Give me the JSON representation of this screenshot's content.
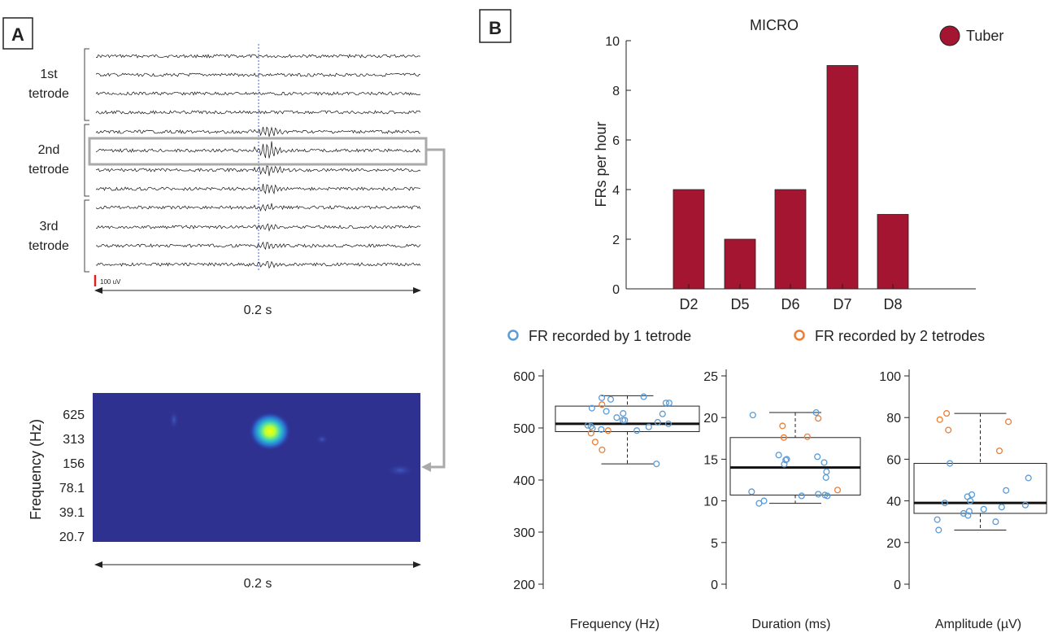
{
  "panels": {
    "a": {
      "label": "A",
      "groups": [
        {
          "line1": "1st",
          "line2": "tetrode"
        },
        {
          "line1": "2nd",
          "line2": "tetrode"
        },
        {
          "line1": "3rd",
          "line2": "tetrode"
        }
      ],
      "trace_count": 12,
      "highlighted_trace": 6,
      "scale_bar_label": "100 uV",
      "scale_bar_color": "#e0201b",
      "time_label": "0.2 s",
      "spectrogram": {
        "ylabel": "Frequency (Hz)",
        "ticks": [
          "625",
          "313",
          "156",
          "78.1",
          "39.1",
          "20.7"
        ],
        "time_label": "0.2 s",
        "background_color": "#2e3190"
      }
    },
    "b": {
      "label": "B",
      "legend": {
        "one_tetrode": "FR recorded by 1 tetrode",
        "two_tetrodes": "FR recorded by 2 tetrodes",
        "one_color": "#5b9bd5",
        "two_color": "#ed7d31"
      }
    }
  },
  "chart_data": [
    {
      "type": "bar",
      "title": "MICRO",
      "ylabel": "FRs per hour",
      "categories": [
        "D2",
        "D5",
        "D6",
        "D7",
        "D8"
      ],
      "series": [
        {
          "name": "Tuber",
          "values": [
            4,
            2,
            4,
            9,
            3
          ],
          "color": "#a31530"
        }
      ],
      "ylim": [
        0,
        10
      ],
      "yticks": [
        0,
        2,
        4,
        6,
        8,
        10
      ],
      "legend": "top-right"
    },
    {
      "type": "box",
      "xlabel": "Frequency (Hz)",
      "ylim": [
        200,
        600
      ],
      "yticks": [
        200,
        300,
        400,
        500,
        600
      ],
      "box": {
        "min": 431,
        "q1": 493,
        "median": 508,
        "q3": 542,
        "max": 562
      },
      "points_1_tetrode": [
        558,
        538,
        548,
        528,
        520,
        515,
        511,
        508,
        505,
        502,
        499,
        497,
        495,
        515,
        532,
        527,
        555,
        560,
        548,
        503,
        431
      ],
      "points_2_tetrodes": [
        545,
        495,
        490,
        473,
        458
      ]
    },
    {
      "type": "box",
      "xlabel": "Duration (ms)",
      "ylim": [
        0,
        25
      ],
      "yticks": [
        0,
        5,
        10,
        15,
        20,
        25
      ],
      "box": {
        "min": 9.7,
        "q1": 10.7,
        "median": 14.0,
        "q3": 17.6,
        "max": 20.6
      },
      "points_1_tetrode": [
        20.6,
        20.3,
        15.5,
        15.0,
        14.9,
        14.6,
        14.4,
        13.5,
        12.8,
        11.1,
        10.8,
        10.7,
        10.6,
        10.6,
        10.0,
        9.7,
        15.3
      ],
      "points_2_tetrodes": [
        19.0,
        17.6,
        17.7,
        19.9,
        11.3
      ]
    },
    {
      "type": "box",
      "xlabel": "Amplitude (µV)",
      "ylim": [
        0,
        100
      ],
      "yticks": [
        0,
        20,
        40,
        60,
        80,
        100
      ],
      "box": {
        "min": 26,
        "q1": 34,
        "median": 39,
        "q3": 58,
        "max": 82
      },
      "points_1_tetrode": [
        58,
        51,
        45,
        42,
        43,
        39,
        38,
        37,
        36,
        35,
        34,
        33,
        31,
        30,
        26,
        40
      ],
      "points_2_tetrodes": [
        82,
        79,
        78,
        74,
        64
      ]
    }
  ]
}
